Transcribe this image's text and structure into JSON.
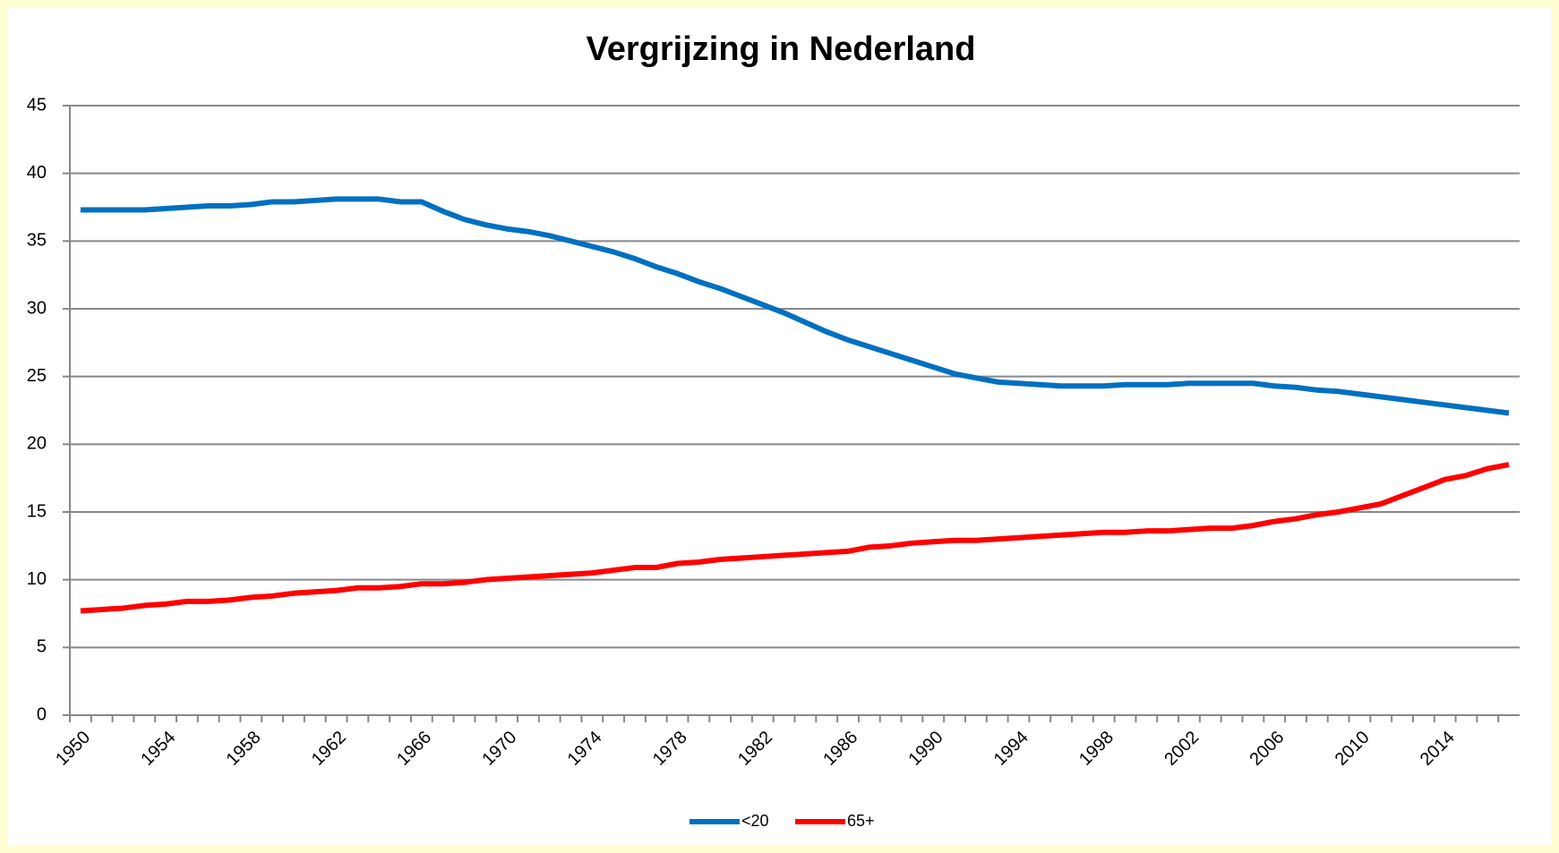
{
  "chart_data": {
    "type": "line",
    "title": "Vergrijzing in Nederland",
    "x": [
      1950,
      1951,
      1952,
      1953,
      1954,
      1955,
      1956,
      1957,
      1958,
      1959,
      1960,
      1961,
      1962,
      1963,
      1964,
      1965,
      1966,
      1967,
      1968,
      1969,
      1970,
      1971,
      1972,
      1973,
      1974,
      1975,
      1976,
      1977,
      1978,
      1979,
      1980,
      1981,
      1982,
      1983,
      1984,
      1985,
      1986,
      1987,
      1988,
      1989,
      1990,
      1991,
      1992,
      1993,
      1994,
      1995,
      1996,
      1997,
      1998,
      1999,
      2000,
      2001,
      2002,
      2003,
      2004,
      2005,
      2006,
      2007,
      2008,
      2009,
      2010,
      2011,
      2012,
      2013,
      2014,
      2015,
      2016,
      2017
    ],
    "series": [
      {
        "name": "<20",
        "color": "#0070c0",
        "values": [
          37.3,
          37.3,
          37.3,
          37.3,
          37.4,
          37.5,
          37.6,
          37.6,
          37.7,
          37.9,
          37.9,
          38.0,
          38.1,
          38.1,
          38.1,
          37.9,
          37.9,
          37.2,
          36.6,
          36.2,
          35.9,
          35.7,
          35.4,
          35.0,
          34.6,
          34.2,
          33.7,
          33.1,
          32.6,
          32.0,
          31.5,
          30.9,
          30.3,
          29.7,
          29.0,
          28.3,
          27.7,
          27.2,
          26.7,
          26.2,
          25.7,
          25.2,
          24.9,
          24.6,
          24.5,
          24.4,
          24.3,
          24.3,
          24.3,
          24.4,
          24.4,
          24.4,
          24.5,
          24.5,
          24.5,
          24.5,
          24.3,
          24.2,
          24.0,
          23.9,
          23.7,
          23.5,
          23.3,
          23.1,
          22.9,
          22.7,
          22.5,
          22.3
        ]
      },
      {
        "name": "65+",
        "color": "#ff0000",
        "values": [
          7.7,
          7.8,
          7.9,
          8.1,
          8.2,
          8.4,
          8.4,
          8.5,
          8.7,
          8.8,
          9.0,
          9.1,
          9.2,
          9.4,
          9.4,
          9.5,
          9.7,
          9.7,
          9.8,
          10.0,
          10.1,
          10.2,
          10.3,
          10.4,
          10.5,
          10.7,
          10.9,
          10.9,
          11.2,
          11.3,
          11.5,
          11.6,
          11.7,
          11.8,
          11.9,
          12.0,
          12.1,
          12.4,
          12.5,
          12.7,
          12.8,
          12.9,
          12.9,
          13.0,
          13.1,
          13.2,
          13.3,
          13.4,
          13.5,
          13.5,
          13.6,
          13.6,
          13.7,
          13.8,
          13.8,
          14.0,
          14.3,
          14.5,
          14.8,
          15.0,
          15.3,
          15.6,
          16.2,
          16.8,
          17.4,
          17.7,
          18.2,
          18.5
        ]
      }
    ],
    "xlim": [
      1949.5,
      2017.5
    ],
    "xticks": [
      1950,
      1954,
      1958,
      1962,
      1966,
      1970,
      1974,
      1978,
      1982,
      1986,
      1990,
      1994,
      1998,
      2002,
      2006,
      2010,
      2014
    ],
    "ylim": [
      0,
      45
    ],
    "yticks": [
      0,
      5,
      10,
      15,
      20,
      25,
      30,
      35,
      40,
      45
    ],
    "grid": true,
    "legend": "bottom"
  }
}
